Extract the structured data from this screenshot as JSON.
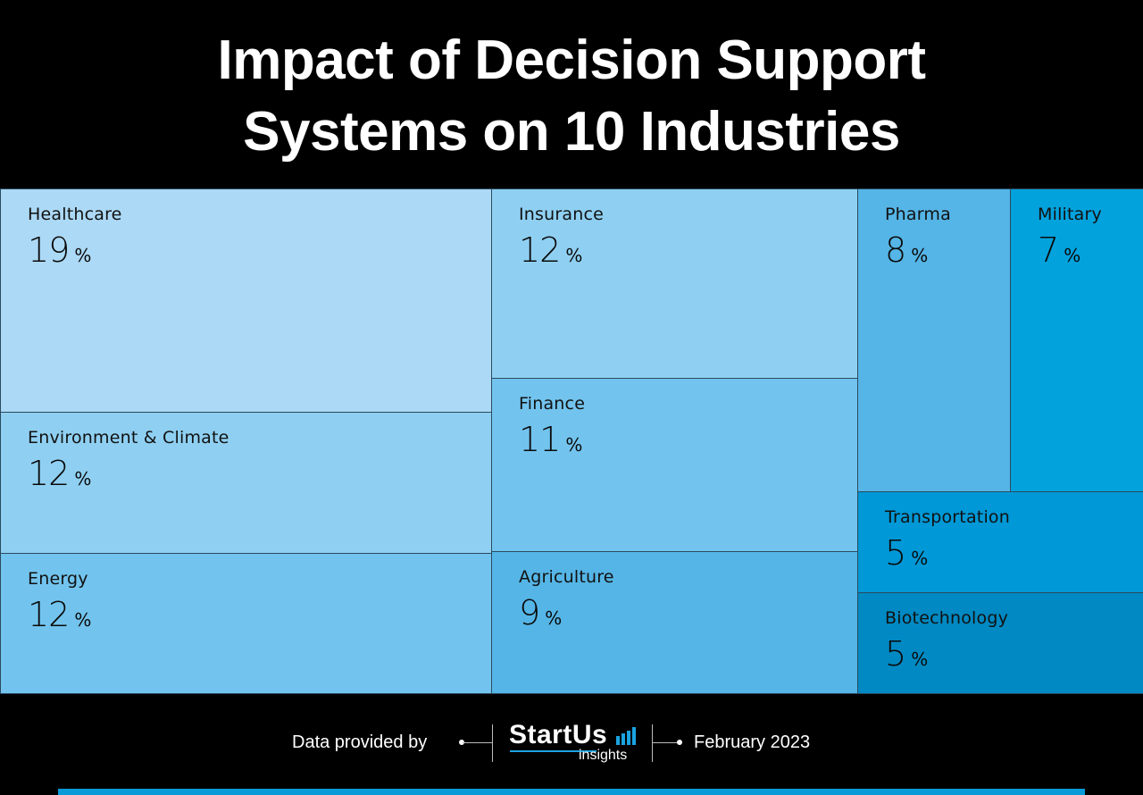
{
  "title_lines": [
    "Impact of Decision Support",
    "Systems on 10 Industries"
  ],
  "chart_data": {
    "type": "treemap",
    "title": "Impact of Decision Support Systems on 10 Industries",
    "unit": "%",
    "items": [
      {
        "name": "Healthcare",
        "value": 19,
        "color": "#acd9f5"
      },
      {
        "name": "Environment & Climate",
        "value": 12,
        "color": "#8fd0f2"
      },
      {
        "name": "Energy",
        "value": 12,
        "color": "#72c4ee"
      },
      {
        "name": "Insurance",
        "value": 12,
        "color": "#8fd0f2"
      },
      {
        "name": "Finance",
        "value": 11,
        "color": "#72c4ee"
      },
      {
        "name": "Agriculture",
        "value": 9,
        "color": "#55b5e6"
      },
      {
        "name": "Pharma",
        "value": 8,
        "color": "#55b5e6"
      },
      {
        "name": "Military",
        "value": 7,
        "color": "#02a2dd"
      },
      {
        "name": "Transportation",
        "value": 5,
        "color": "#0098d6"
      },
      {
        "name": "Biotechnology",
        "value": 5,
        "color": "#0089c2"
      }
    ]
  },
  "footer": {
    "provided_by": "Data provided by",
    "logo_main": "StartUs",
    "logo_sub": "insights",
    "date": "February 2023",
    "accent_color": "#0a9ad8"
  }
}
